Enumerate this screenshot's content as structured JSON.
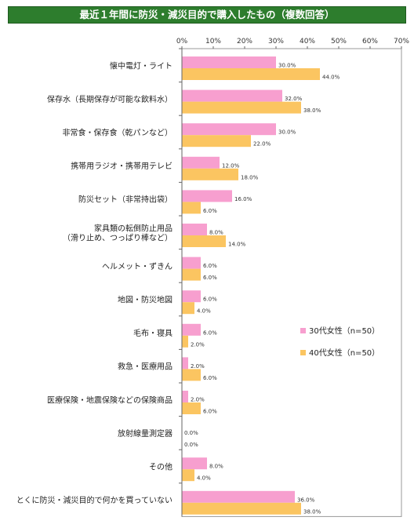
{
  "chart_data": {
    "type": "bar",
    "orientation": "horizontal",
    "title": "最近１年間に防災・減災目的で購入したもの（複数回答）",
    "xlim": [
      0,
      70
    ],
    "x_ticks": [
      "0%",
      "10%",
      "20%",
      "30%",
      "40%",
      "50%",
      "60%",
      "70%"
    ],
    "x_tick_values": [
      0,
      10,
      20,
      30,
      40,
      50,
      60,
      70
    ],
    "grid": false,
    "legend_position": "right",
    "categories": [
      [
        "懐中電灯・ライト"
      ],
      [
        "保存水（長期保存が可能な飲料水）"
      ],
      [
        "非常食・保存食（乾パンなど）"
      ],
      [
        "携帯用ラジオ・携帯用テレビ"
      ],
      [
        "防災セット（非常持出袋）"
      ],
      [
        "家具類の転倒防止用品",
        "（滑り止め、つっぱり棒など）"
      ],
      [
        "ヘルメット・ずきん"
      ],
      [
        "地図・防災地図"
      ],
      [
        "毛布・寝具"
      ],
      [
        "救急・医療用品"
      ],
      [
        "医療保険・地震保険などの保険商品"
      ],
      [
        "放射線量測定器"
      ],
      [
        "その他"
      ],
      [
        "とくに防災・減災目的で何かを買っていない"
      ]
    ],
    "series": [
      {
        "name": "30代女性（n=50）",
        "color": "#f79fcf",
        "values": [
          30,
          32,
          30,
          12,
          16,
          8,
          6,
          6,
          6,
          2,
          2,
          0,
          8,
          36
        ],
        "labels": [
          "30.0%",
          "32.0%",
          "30.0%",
          "12.0%",
          "16.0%",
          "8.0%",
          "6.0%",
          "6.0%",
          "6.0%",
          "2.0%",
          "2.0%",
          "0.0%",
          "8.0%",
          "36.0%"
        ]
      },
      {
        "name": "40代女性（n=50）",
        "color": "#fbc561",
        "values": [
          44,
          38,
          22,
          18,
          6,
          14,
          6,
          4,
          2,
          6,
          6,
          0,
          4,
          38
        ],
        "labels": [
          "44.0%",
          "38.0%",
          "22.0%",
          "18.0%",
          "6.0%",
          "14.0%",
          "6.0%",
          "4.0%",
          "2.0%",
          "6.0%",
          "6.0%",
          "0.0%",
          "4.0%",
          "38.0%"
        ]
      }
    ]
  }
}
